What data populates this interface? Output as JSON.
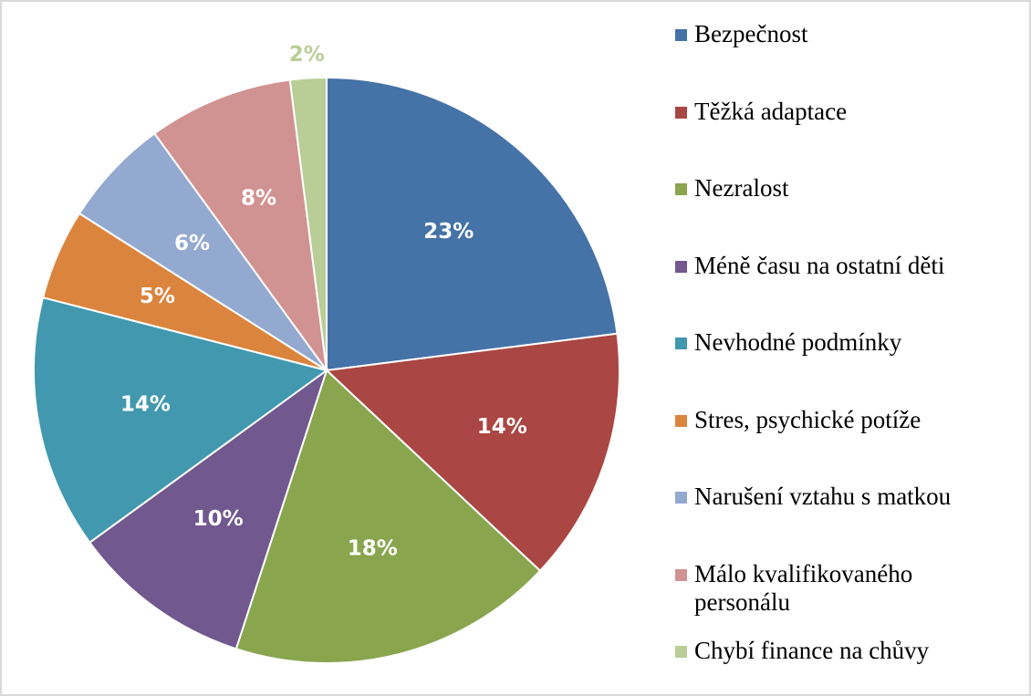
{
  "chart_data": {
    "type": "pie",
    "categories": [
      "Bezpečnost",
      "Těžká adaptace",
      "Nezralost",
      "Méně času na ostatní děti",
      "Nevhodné podmínky",
      "Stres, psychické potíže",
      "Narušení vztahu s matkou",
      "Málo kvalifikovaného personálu",
      "Chybí finance na chůvy"
    ],
    "values": [
      23,
      14,
      18,
      10,
      14,
      5,
      6,
      8,
      2
    ],
    "value_labels": [
      "23%",
      "14%",
      "18%",
      "10%",
      "14%",
      "5%",
      "6%",
      "8%",
      "2%"
    ],
    "colors": [
      "#4572a7",
      "#aa4643",
      "#89a54e",
      "#71588f",
      "#4198af",
      "#db843d",
      "#93a9cf",
      "#d19392",
      "#b9cd96"
    ],
    "legend": "right"
  }
}
